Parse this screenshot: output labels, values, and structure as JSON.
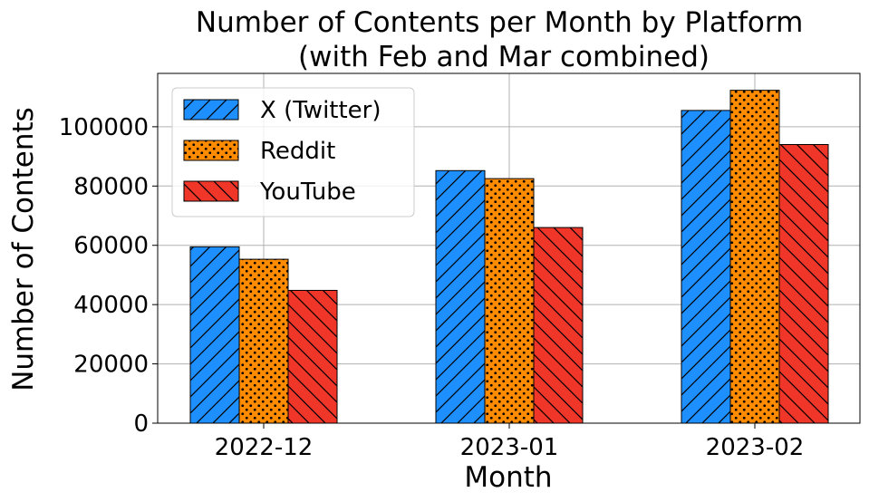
{
  "chart_data": {
    "type": "bar",
    "title": "Number of Contents per Month by Platform\n(with Feb and Mar combined)",
    "xlabel": "Month",
    "ylabel": "Number of Contents",
    "categories": [
      "2022-12",
      "2023-01",
      "2023-02"
    ],
    "ylim": [
      0,
      118000
    ],
    "yticks": [
      0,
      20000,
      40000,
      60000,
      80000,
      100000
    ],
    "grid": true,
    "legend_position": "top-left",
    "series": [
      {
        "name": "X (Twitter)",
        "values": [
          59500,
          85200,
          105500
        ],
        "color": "#1e8fff",
        "hatch": "forward-diagonal"
      },
      {
        "name": "Reddit",
        "values": [
          55300,
          82500,
          112300
        ],
        "color": "#ff8c00",
        "hatch": "dots"
      },
      {
        "name": "YouTube",
        "values": [
          44800,
          66000,
          94000
        ],
        "color": "#f03628",
        "hatch": "back-diagonal"
      }
    ]
  }
}
